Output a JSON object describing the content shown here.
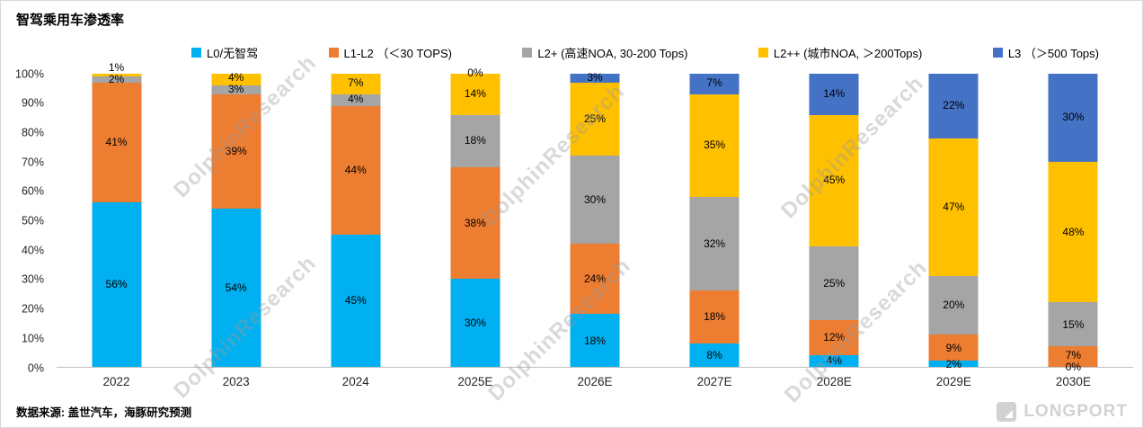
{
  "header": {
    "title": "智驾乘用车渗透率"
  },
  "footer": {
    "source_note": "数据来源: 盖世汽车，海豚研究预测"
  },
  "branding": {
    "watermark": "DolphinResearch",
    "logo_text": "LONGPORT"
  },
  "chart_data": {
    "type": "bar",
    "stacked": true,
    "title": "智驾乘用车渗透率",
    "categories": [
      "2022",
      "2023",
      "2024",
      "2025E",
      "2026E",
      "2027E",
      "2028E",
      "2029E",
      "2030E"
    ],
    "series": [
      {
        "name": "L0/无智驾",
        "color": "#00B0F0",
        "values": [
          56,
          54,
          45,
          30,
          18,
          8,
          4,
          2,
          0
        ]
      },
      {
        "name": "L1-L2 （＜30 TOPS)",
        "color": "#ED7D31",
        "values": [
          41,
          39,
          44,
          38,
          24,
          18,
          12,
          9,
          7
        ]
      },
      {
        "name": "L2+ (高速NOA, 30-200 Tops)",
        "color": "#A5A5A5",
        "values": [
          2,
          3,
          4,
          18,
          30,
          32,
          25,
          20,
          15
        ]
      },
      {
        "name": "L2++ (城市NOA, ＞200Tops)",
        "color": "#FFC000",
        "values": [
          1,
          4,
          7,
          14,
          25,
          35,
          45,
          47,
          48
        ]
      },
      {
        "name": "L3 （＞500 Tops)",
        "color": "#4472C4",
        "values": [
          0,
          0,
          0,
          0,
          3,
          7,
          14,
          22,
          30
        ]
      }
    ],
    "ylim": [
      0,
      100
    ],
    "yticks": [
      "0%",
      "10%",
      "20%",
      "30%",
      "40%",
      "50%",
      "60%",
      "70%",
      "80%",
      "90%",
      "100%"
    ],
    "zero_labels": [
      {
        "category": "2025E",
        "series_index": 4
      },
      {
        "category": "2030E",
        "series_index": 0
      }
    ],
    "grid": false,
    "legend_position": "top",
    "data_label_format": "percent"
  }
}
